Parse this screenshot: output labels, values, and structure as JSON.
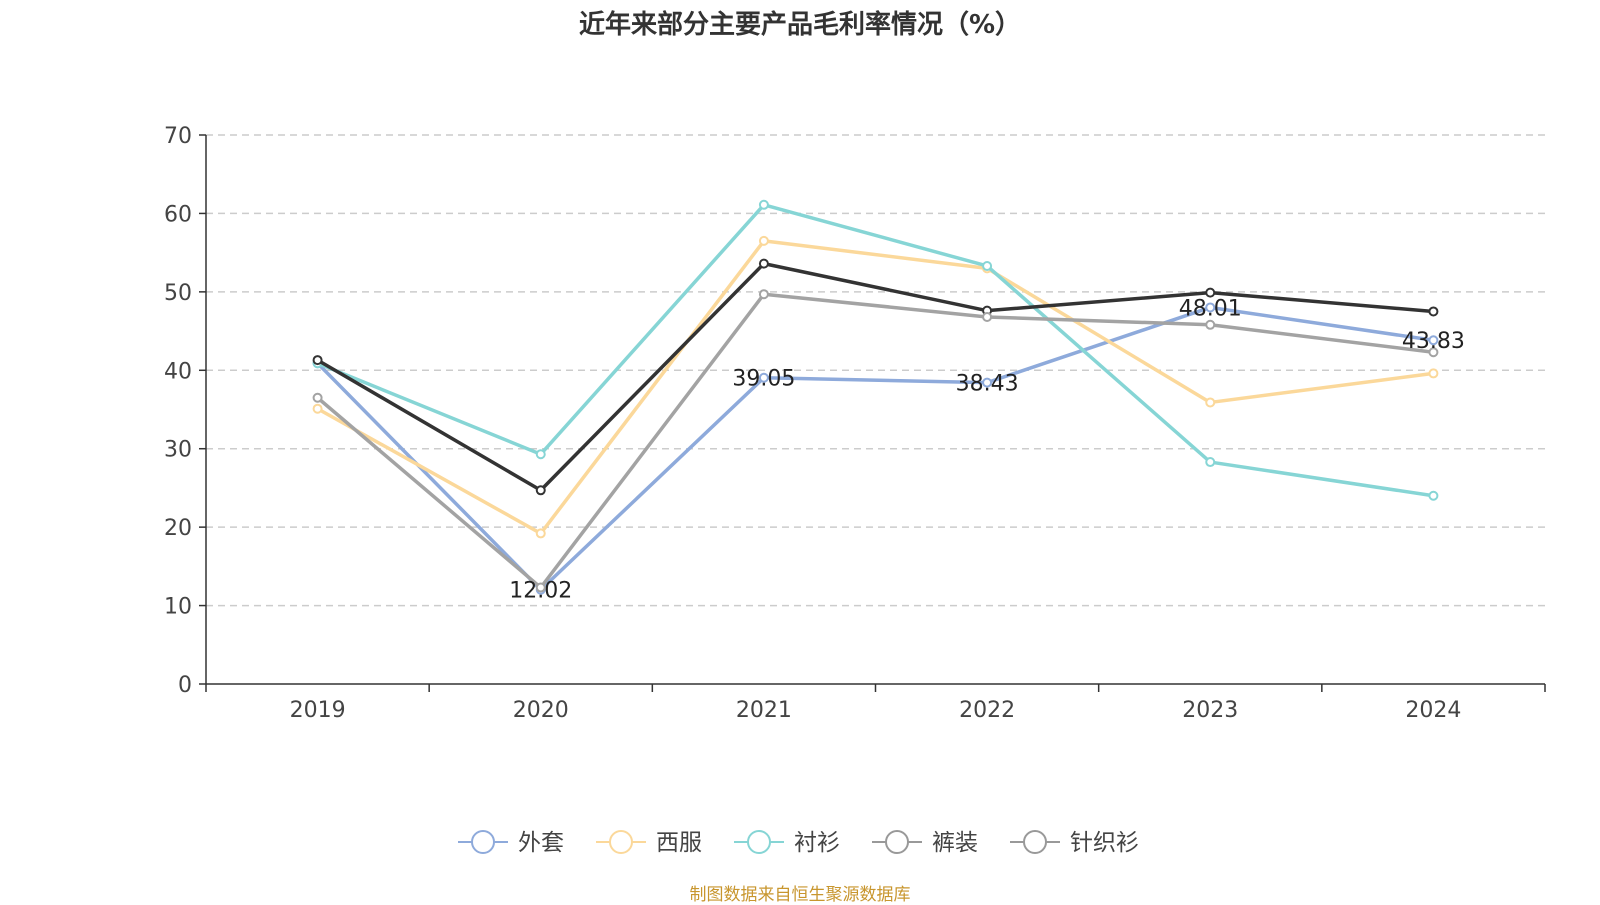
{
  "chart_data": {
    "type": "line",
    "title": "近年来部分主要产品毛利率情况（%）",
    "categories": [
      "2019",
      "2020",
      "2021",
      "2022",
      "2023",
      "2024"
    ],
    "ylim": [
      0,
      70
    ],
    "yticks": [
      0,
      10,
      20,
      30,
      40,
      50,
      60,
      70
    ],
    "grid": true,
    "legend_position": "bottom",
    "series": [
      {
        "name": "外套",
        "color": "#8eaadb",
        "values": [
          40.9,
          12.02,
          39.05,
          38.43,
          48.01,
          43.83
        ],
        "labels": [
          null,
          "12.02",
          "39.05",
          "38.43",
          "48.01",
          "43.83"
        ]
      },
      {
        "name": "西服",
        "color": "#fbd89a",
        "values": [
          35.1,
          19.2,
          56.5,
          53.0,
          35.9,
          39.6
        ],
        "labels": [
          null,
          null,
          null,
          null,
          null,
          null
        ]
      },
      {
        "name": "衬衫",
        "color": "#86d5d5",
        "values": [
          40.9,
          29.3,
          61.1,
          53.3,
          28.3,
          24.0
        ],
        "labels": [
          null,
          null,
          null,
          null,
          null,
          null
        ]
      },
      {
        "name": "裤装",
        "color": "#333333",
        "values": [
          41.3,
          24.7,
          53.6,
          47.6,
          49.9,
          47.5
        ],
        "labels": [
          null,
          null,
          null,
          null,
          null,
          null
        ]
      },
      {
        "name": "针织衫",
        "color": "#a3a3a3",
        "values": [
          36.5,
          12.3,
          49.7,
          46.8,
          45.8,
          42.3
        ],
        "labels": [
          null,
          null,
          null,
          null,
          null,
          null
        ]
      }
    ],
    "legend": [
      {
        "name": "外套",
        "color": "#8eaadb"
      },
      {
        "name": "西服",
        "color": "#fbd89a"
      },
      {
        "name": "衬衫",
        "color": "#86d5d5"
      },
      {
        "name": "裤装",
        "color": "#999999"
      },
      {
        "name": "针织衫",
        "color": "#999999"
      }
    ]
  },
  "source_note": "制图数据来自恒生聚源数据库"
}
